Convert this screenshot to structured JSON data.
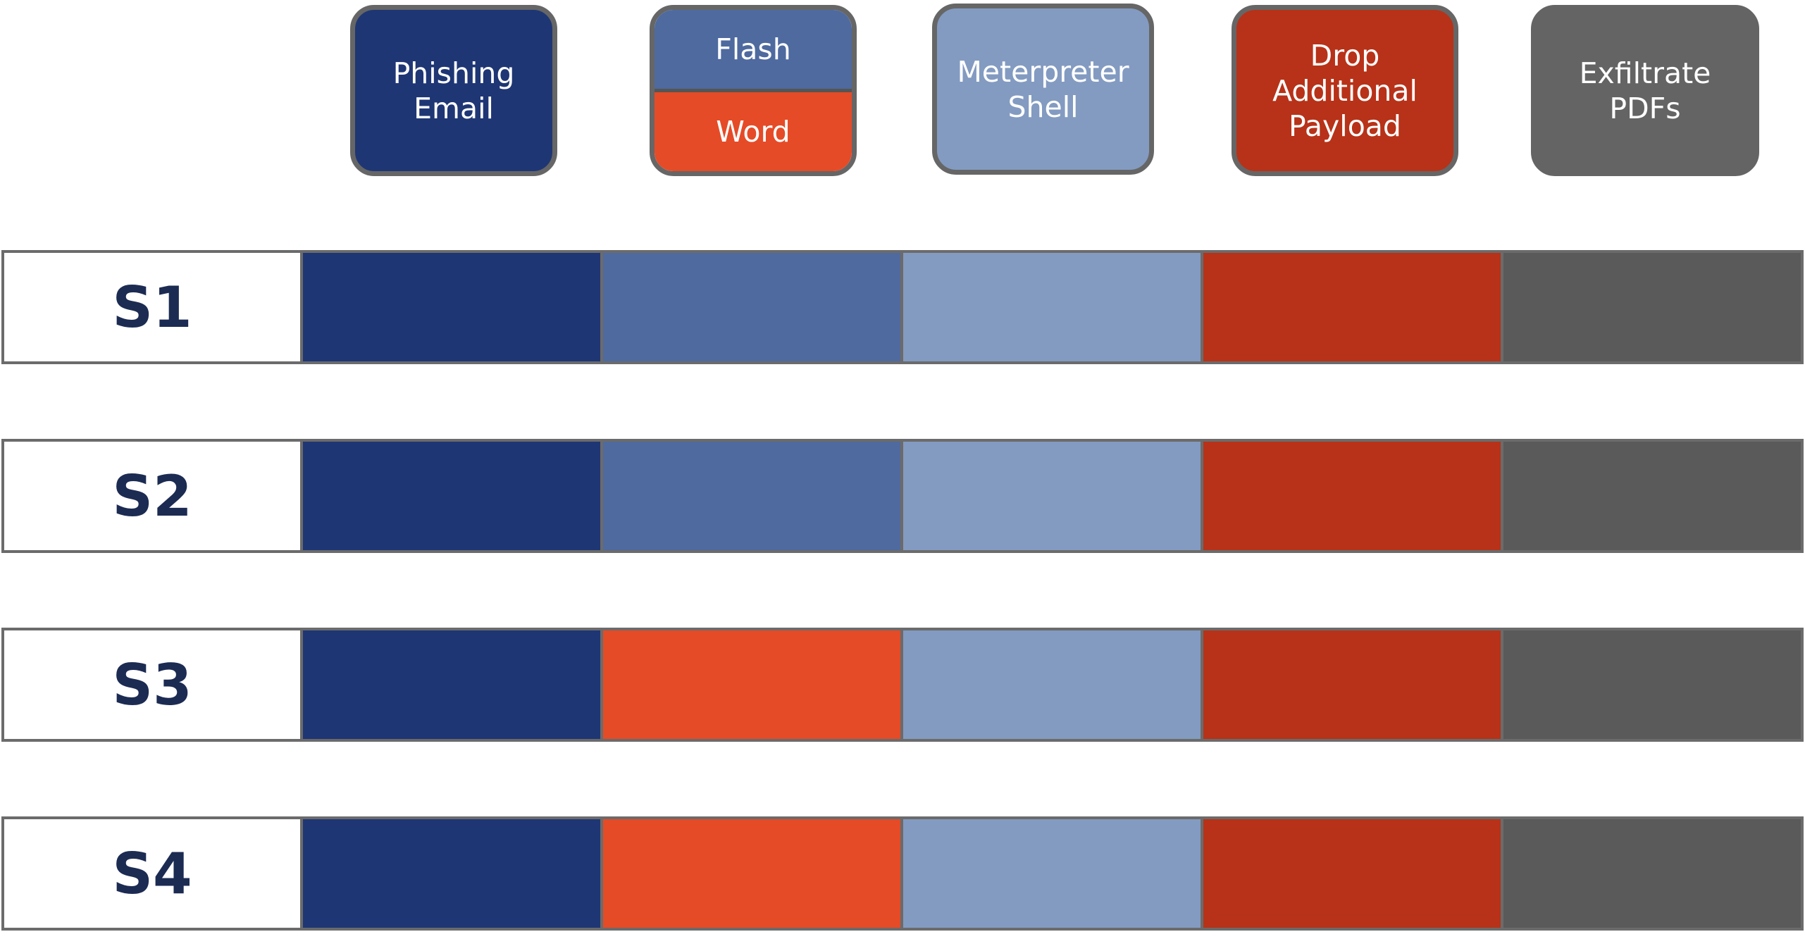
{
  "colors": {
    "phishing": "#1e3674",
    "flash": "#4e6a9f",
    "word": "#e54b27",
    "meterpreter": "#839bc1",
    "drop": "#b73218",
    "exfil_legend": "#646464",
    "exfil_cell": "#5a5a5a"
  },
  "legend": {
    "phishing_email": "Phishing\nEmail",
    "flash": "Flash",
    "word": "Word",
    "meterpreter_shell": "Meterpreter\nShell",
    "drop_additional_payload": "Drop\nAdditional\nPayload",
    "exfiltrate_pdfs": "Exfiltrate\nPDFs"
  },
  "rows": [
    {
      "label": "S1",
      "stages": [
        "phishing",
        "flash",
        "meterpreter",
        "drop",
        "exfil_cell"
      ]
    },
    {
      "label": "S2",
      "stages": [
        "phishing",
        "flash",
        "meterpreter",
        "drop",
        "exfil_cell"
      ]
    },
    {
      "label": "S3",
      "stages": [
        "phishing",
        "word",
        "meterpreter",
        "drop",
        "exfil_cell"
      ]
    },
    {
      "label": "S4",
      "stages": [
        "phishing",
        "word",
        "meterpreter",
        "drop",
        "exfil_cell"
      ]
    }
  ]
}
